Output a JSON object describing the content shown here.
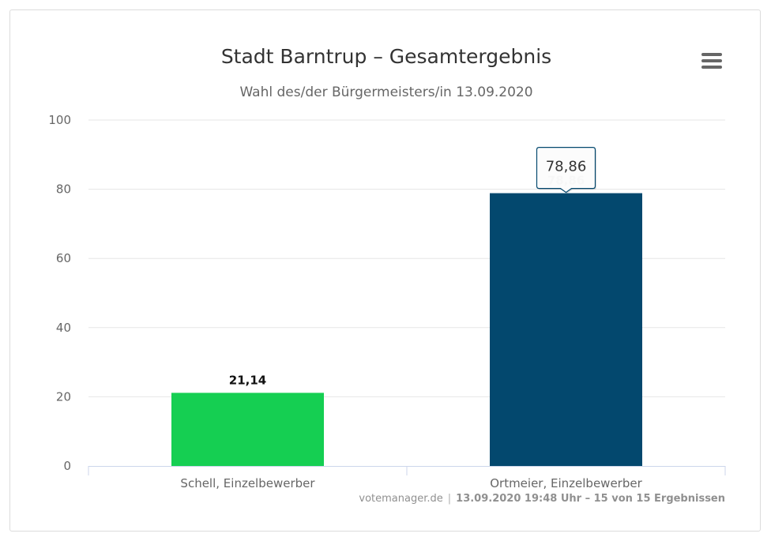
{
  "chart_data": {
    "type": "bar",
    "title": "Stadt Barntrup – Gesamtergebnis",
    "subtitle": "Wahl des/der Bürgermeisters/in 13.09.2020",
    "categories": [
      "Schell, Einzelbewerber",
      "Ortmeier, Einzelbewerber"
    ],
    "values": [
      21.14,
      78.86
    ],
    "value_labels": [
      "21,14",
      "78,86"
    ],
    "colors": [
      "#15cf52",
      "#03486e"
    ],
    "ylim": [
      0,
      100
    ],
    "yticks": [
      0,
      20,
      40,
      60,
      80,
      100
    ],
    "grid": true,
    "legend": "none",
    "tooltip": {
      "category_index": 1,
      "text": "78,86"
    }
  },
  "menu": {
    "icon": "hamburger-menu-icon"
  },
  "credits": {
    "source": "votemanager.de",
    "separator": "|",
    "timestamp": "13.09.2020 19:48 Uhr – 15 von 15 Ergebnissen"
  }
}
